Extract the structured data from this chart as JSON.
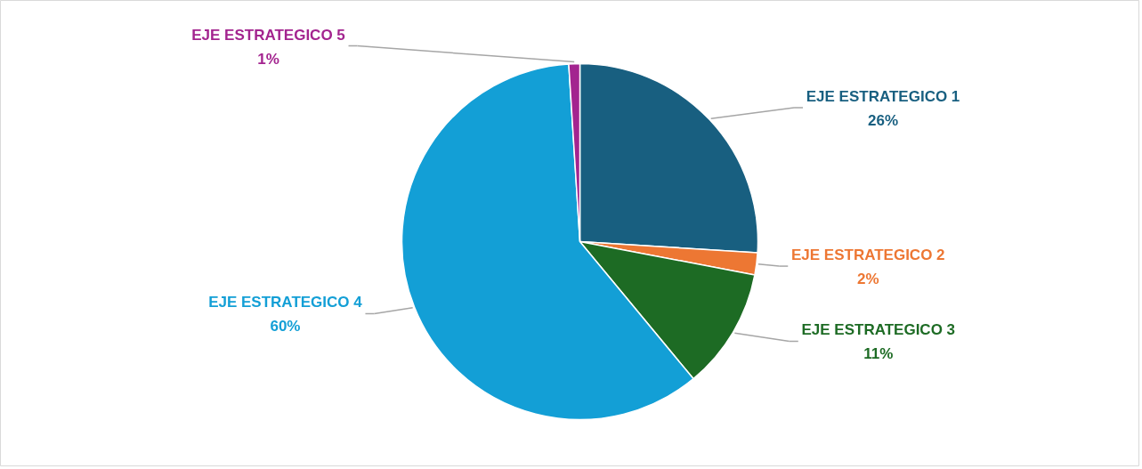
{
  "chart_data": {
    "type": "pie",
    "categories": [
      "EJE ESTRATEGICO 1",
      "EJE ESTRATEGICO 2",
      "EJE ESTRATEGICO 3",
      "EJE ESTRATEGICO 4",
      "EJE ESTRATEGICO 5"
    ],
    "values": [
      26,
      2,
      11,
      60,
      1
    ],
    "value_labels": [
      "26%",
      "2%",
      "11%",
      "60%",
      "1%"
    ],
    "colors": [
      "#185f80",
      "#ed7733",
      "#1d6b24",
      "#139fd6",
      "#a3248f"
    ]
  }
}
